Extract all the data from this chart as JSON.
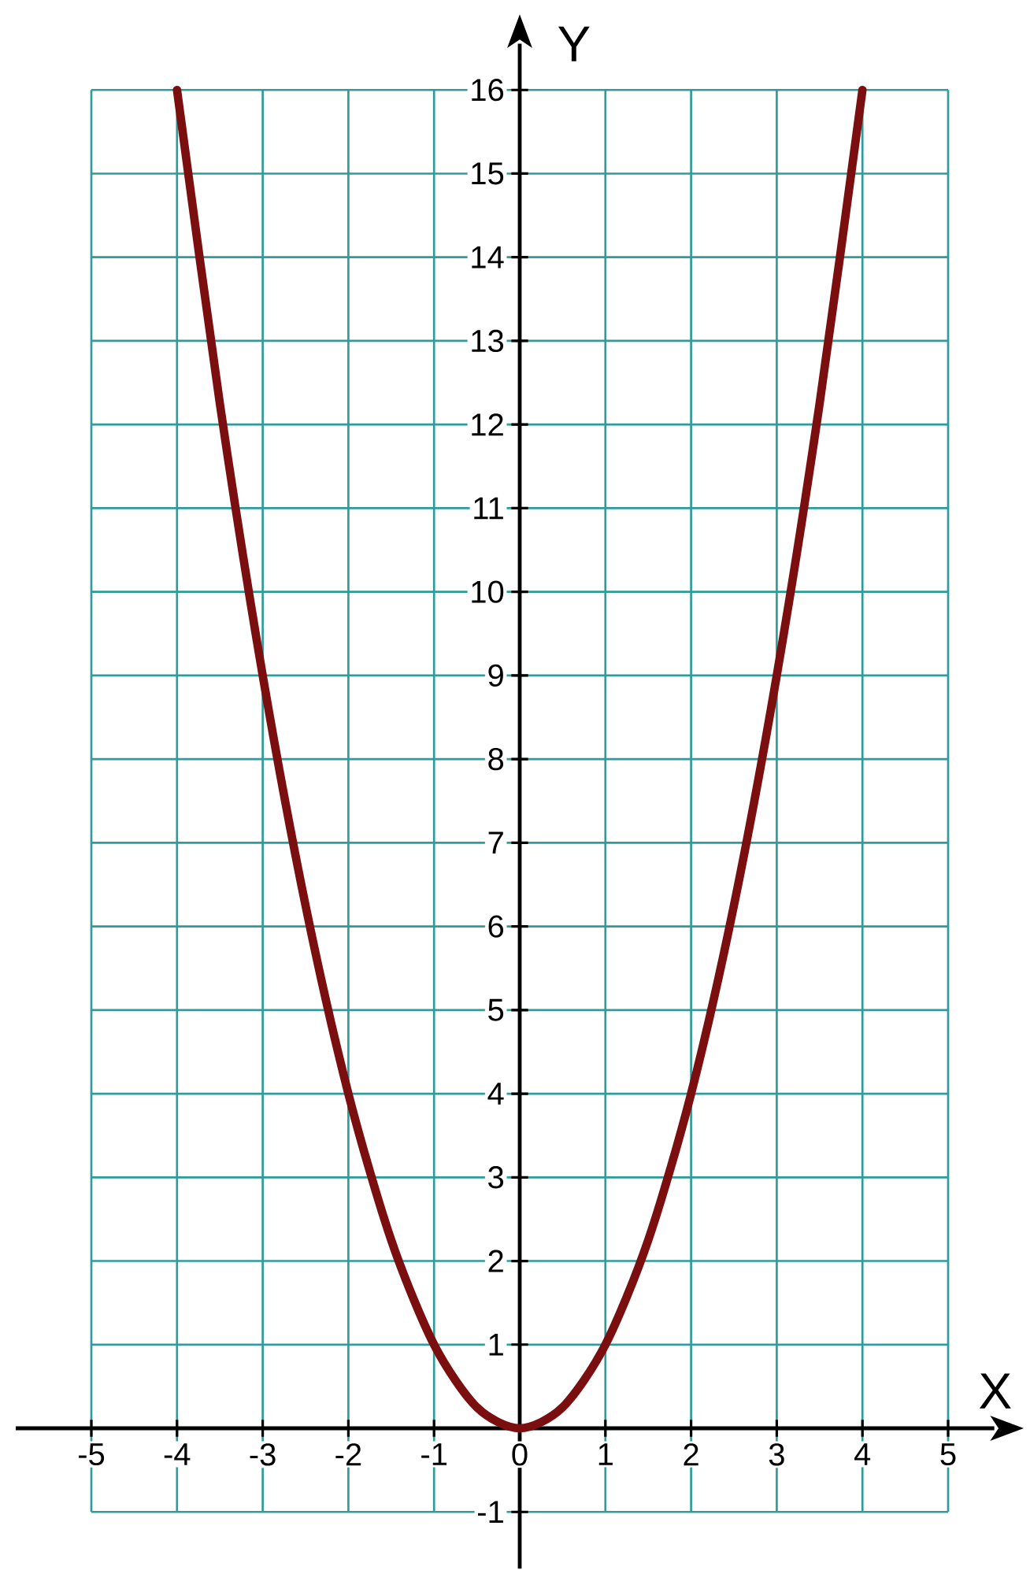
{
  "chart_data": {
    "type": "line",
    "xlabel": "X",
    "ylabel": "Y",
    "x": [
      -4,
      -3.5,
      -3,
      -2.5,
      -2,
      -1.5,
      -1,
      -0.5,
      0,
      0.5,
      1,
      1.5,
      2,
      2.5,
      3,
      3.5,
      4
    ],
    "values": [
      16,
      12.25,
      9,
      6.25,
      4,
      2.25,
      1,
      0.25,
      0,
      0.25,
      1,
      2.25,
      4,
      6.25,
      9,
      12.25,
      16
    ],
    "color": "#7b0f0f",
    "xlim": [
      -5,
      5
    ],
    "ylim": [
      -1,
      16
    ],
    "xticks": [
      -5,
      -4,
      -3,
      -2,
      -1,
      0,
      1,
      2,
      3,
      4,
      5
    ],
    "yticks": [
      -1,
      {
        "value": 0,
        "label": null
      },
      1,
      2,
      3,
      4,
      5,
      6,
      7,
      8,
      9,
      10,
      11,
      12,
      13,
      14,
      15,
      16
    ],
    "grid": true
  }
}
